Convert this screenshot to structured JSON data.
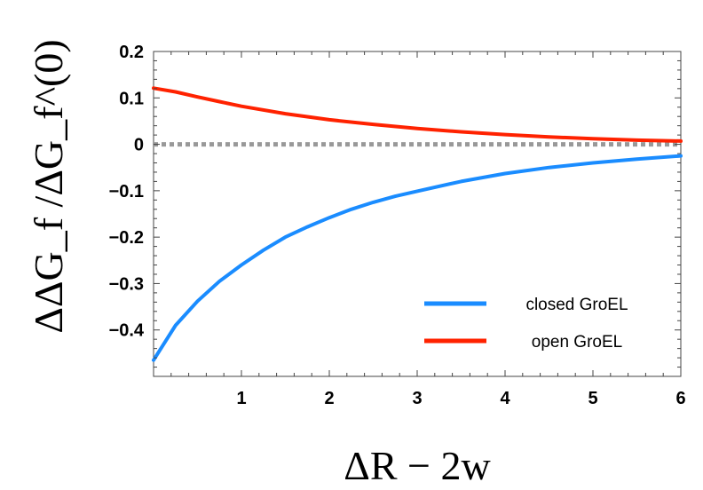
{
  "chart_data": {
    "type": "line",
    "xlabel": "ΔR − 2w",
    "ylabel": "ΔΔG_f /ΔG_f^(0)",
    "xlim": [
      0,
      6
    ],
    "ylim": [
      -0.5,
      0.2
    ],
    "xticks": [
      1,
      2,
      3,
      4,
      5,
      6
    ],
    "yticks": [
      0.2,
      0.1,
      0,
      -0.1,
      -0.2,
      -0.3,
      -0.4
    ],
    "ytick_labels": [
      "0.2",
      "0.1",
      "0",
      "−0.1",
      "−0.2",
      "−0.3",
      "−0.4"
    ],
    "grid": false,
    "legend_position": "bottom-right",
    "reference_line": {
      "y": 0,
      "style": "dotted",
      "color": "#999999"
    },
    "series": [
      {
        "name": "closed GroEL",
        "color": "#1a8cff",
        "x": [
          0,
          0.25,
          0.5,
          0.75,
          1,
          1.25,
          1.5,
          1.75,
          2,
          2.25,
          2.5,
          2.75,
          3,
          3.5,
          4,
          4.5,
          5,
          5.5,
          6
        ],
        "y": [
          -0.465,
          -0.39,
          -0.338,
          -0.295,
          -0.26,
          -0.228,
          -0.2,
          -0.178,
          -0.158,
          -0.14,
          -0.125,
          -0.112,
          -0.101,
          -0.08,
          -0.063,
          -0.05,
          -0.04,
          -0.032,
          -0.025
        ]
      },
      {
        "name": "open GroEL",
        "color": "#ff2200",
        "x": [
          0,
          0.25,
          0.5,
          0.75,
          1,
          1.5,
          2,
          2.5,
          3,
          3.5,
          4,
          4.5,
          5,
          5.5,
          6
        ],
        "y": [
          0.121,
          0.113,
          0.102,
          0.092,
          0.082,
          0.066,
          0.053,
          0.043,
          0.034,
          0.027,
          0.021,
          0.016,
          0.012,
          0.009,
          0.007
        ]
      }
    ]
  }
}
